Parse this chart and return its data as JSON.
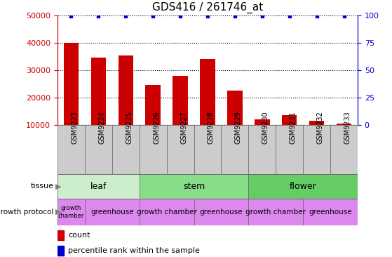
{
  "title": "GDS416 / 261746_at",
  "samples": [
    "GSM9223",
    "GSM9224",
    "GSM9225",
    "GSM9226",
    "GSM9227",
    "GSM9228",
    "GSM9229",
    "GSM9230",
    "GSM9231",
    "GSM9232",
    "GSM9233"
  ],
  "counts": [
    40000,
    34500,
    35500,
    24500,
    28000,
    34000,
    22500,
    12000,
    13500,
    11500,
    10500
  ],
  "percentiles": [
    100,
    100,
    100,
    100,
    100,
    100,
    100,
    100,
    100,
    100,
    100
  ],
  "ylim_left": [
    10000,
    50000
  ],
  "ylim_right": [
    0,
    100
  ],
  "yticks_left": [
    10000,
    20000,
    30000,
    40000,
    50000
  ],
  "yticks_right": [
    0,
    25,
    50,
    75,
    100
  ],
  "bar_color": "#cc0000",
  "dot_color": "#0000cc",
  "tissue_groups": [
    {
      "label": "leaf",
      "start": 0,
      "end": 3
    },
    {
      "label": "stem",
      "start": 3,
      "end": 7
    },
    {
      "label": "flower",
      "start": 7,
      "end": 11
    }
  ],
  "tissue_colors": {
    "leaf": "#cceecc",
    "stem": "#88dd88",
    "flower": "#66cc66"
  },
  "growth_segments": [
    {
      "label": "growth\nchamber",
      "start": 0,
      "end": 1
    },
    {
      "label": "greenhouse",
      "start": 1,
      "end": 3
    },
    {
      "label": "growth chamber",
      "start": 3,
      "end": 5
    },
    {
      "label": "greenhouse",
      "start": 5,
      "end": 7
    },
    {
      "label": "growth chamber",
      "start": 7,
      "end": 9
    },
    {
      "label": "greenhouse",
      "start": 9,
      "end": 11
    }
  ],
  "growth_color": "#dd88ee",
  "sample_box_color": "#cccccc",
  "tissue_label": "tissue",
  "growth_label": "growth protocol",
  "legend_count_label": "count",
  "legend_pct_label": "percentile rank within the sample",
  "left_axis_color": "#cc0000",
  "right_axis_color": "#0000cc",
  "title_fontsize": 11
}
